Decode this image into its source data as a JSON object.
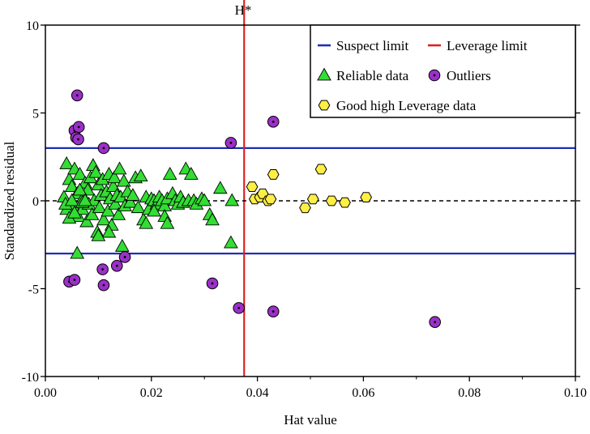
{
  "chart_data": {
    "type": "scatter",
    "xlabel": "Hat value",
    "ylabel": "Standardized residual",
    "xlim": [
      0.0,
      0.1
    ],
    "ylim": [
      -10,
      10
    ],
    "x_ticks": [
      "0.00",
      "0.02",
      "0.04",
      "0.06",
      "0.08",
      "0.10"
    ],
    "y_ticks": [
      "10",
      "5",
      "0",
      "-5",
      "-10"
    ],
    "grid": false,
    "legend_position": "top-right",
    "hstar_label": "H*",
    "reference_lines": [
      {
        "name": "Suspect limit",
        "orientation": "horizontal",
        "values": [
          3,
          -3
        ],
        "color": "#1f2fb5"
      },
      {
        "name": "Leverage limit",
        "orientation": "vertical",
        "values": [
          0.0375
        ],
        "color": "#e02020"
      },
      {
        "name": "",
        "orientation": "horizontal",
        "values": [
          0
        ],
        "color": "#000000",
        "dashed": true
      }
    ],
    "series": [
      {
        "name": "Reliable data",
        "marker": "triangle",
        "color": "#33dd33",
        "points": [
          [
            0.004,
            2.1
          ],
          [
            0.0045,
            1.2
          ],
          [
            0.005,
            0.8
          ],
          [
            0.0052,
            -0.3
          ],
          [
            0.0055,
            1.8
          ],
          [
            0.006,
            0.4
          ],
          [
            0.0062,
            -0.9
          ],
          [
            0.0065,
            1.5
          ],
          [
            0.007,
            -0.5
          ],
          [
            0.0072,
            0.2
          ],
          [
            0.0075,
            1.0
          ],
          [
            0.0078,
            -1.2
          ],
          [
            0.008,
            0.6
          ],
          [
            0.0082,
            -0.2
          ],
          [
            0.0085,
            1.3
          ],
          [
            0.0088,
            -0.8
          ],
          [
            0.009,
            2.0
          ],
          [
            0.0092,
            0.0
          ],
          [
            0.0095,
            1.6
          ],
          [
            0.0098,
            -1.8
          ],
          [
            0.01,
            0.9
          ],
          [
            0.0102,
            -0.4
          ],
          [
            0.0105,
            0.3
          ],
          [
            0.0108,
            1.2
          ],
          [
            0.011,
            -1.1
          ],
          [
            0.0115,
            0.5
          ],
          [
            0.0118,
            -0.6
          ],
          [
            0.012,
            1.5
          ],
          [
            0.0122,
            0.1
          ],
          [
            0.0125,
            -1.4
          ],
          [
            0.0128,
            0.8
          ],
          [
            0.013,
            1.3
          ],
          [
            0.0132,
            -0.2
          ],
          [
            0.0135,
            0.3
          ],
          [
            0.0138,
            -0.8
          ],
          [
            0.014,
            1.8
          ],
          [
            0.0142,
            0.2
          ],
          [
            0.0145,
            -2.6
          ],
          [
            0.0148,
            1.1
          ],
          [
            0.015,
            -0.3
          ],
          [
            0.0155,
            0.5
          ],
          [
            0.016,
            -0.1
          ],
          [
            0.0165,
            0.3
          ],
          [
            0.017,
            1.3
          ],
          [
            0.0175,
            -0.4
          ],
          [
            0.018,
            1.4
          ],
          [
            0.0185,
            -1.1
          ],
          [
            0.019,
            0.2
          ],
          [
            0.0195,
            -0.5
          ],
          [
            0.02,
            0.1
          ],
          [
            0.0205,
            0.0
          ],
          [
            0.021,
            -0.2
          ],
          [
            0.0215,
            0.2
          ],
          [
            0.022,
            0.0
          ],
          [
            0.0225,
            -0.3
          ],
          [
            0.023,
            0.1
          ],
          [
            0.0235,
            1.5
          ],
          [
            0.024,
            0.4
          ],
          [
            0.0245,
            0.0
          ],
          [
            0.025,
            -0.2
          ],
          [
            0.0255,
            0.2
          ],
          [
            0.026,
            -0.1
          ],
          [
            0.0265,
            1.8
          ],
          [
            0.027,
            0.0
          ],
          [
            0.0275,
            1.5
          ],
          [
            0.028,
            0.0
          ],
          [
            0.0285,
            -0.2
          ],
          [
            0.0295,
            0.1
          ],
          [
            0.03,
            0.0
          ],
          [
            0.031,
            -0.8
          ],
          [
            0.0315,
            -1.1
          ],
          [
            0.033,
            0.7
          ],
          [
            0.035,
            -2.4
          ],
          [
            0.0352,
            0.0
          ],
          [
            0.0225,
            -0.9
          ],
          [
            0.023,
            -1.3
          ],
          [
            0.0205,
            -0.6
          ],
          [
            0.019,
            -1.3
          ],
          [
            0.012,
            -1.8
          ],
          [
            0.01,
            -2.0
          ],
          [
            0.006,
            -3.0
          ],
          [
            0.004,
            -0.5
          ],
          [
            0.0035,
            0.2
          ],
          [
            0.0038,
            -0.2
          ],
          [
            0.0045,
            -1.0
          ],
          [
            0.005,
            0.0
          ],
          [
            0.0055,
            -0.7
          ],
          [
            0.0065,
            0.6
          ],
          [
            0.007,
            -0.1
          ],
          [
            0.0075,
            0.0
          ]
        ]
      },
      {
        "name": "Outliers",
        "marker": "circle",
        "color": "#9b30c8",
        "points": [
          [
            0.006,
            6.0
          ],
          [
            0.0055,
            4.0
          ],
          [
            0.0063,
            4.2
          ],
          [
            0.0058,
            3.6
          ],
          [
            0.0062,
            3.5
          ],
          [
            0.011,
            3.0
          ],
          [
            0.035,
            3.3
          ],
          [
            0.043,
            4.5
          ],
          [
            0.0045,
            -4.6
          ],
          [
            0.0055,
            -4.5
          ],
          [
            0.0108,
            -3.9
          ],
          [
            0.011,
            -4.8
          ],
          [
            0.0135,
            -3.7
          ],
          [
            0.015,
            -3.2
          ],
          [
            0.0315,
            -4.7
          ],
          [
            0.0365,
            -6.1
          ],
          [
            0.043,
            -6.3
          ],
          [
            0.0735,
            -6.9
          ]
        ]
      },
      {
        "name": "Good high Leverage data",
        "marker": "hexagon",
        "color": "#ffee44",
        "points": [
          [
            0.039,
            0.8
          ],
          [
            0.0395,
            0.1
          ],
          [
            0.0405,
            0.2
          ],
          [
            0.041,
            0.4
          ],
          [
            0.042,
            0.0
          ],
          [
            0.0425,
            0.1
          ],
          [
            0.043,
            1.5
          ],
          [
            0.049,
            -0.4
          ],
          [
            0.0505,
            0.1
          ],
          [
            0.052,
            1.8
          ],
          [
            0.054,
            0.0
          ],
          [
            0.0565,
            -0.1
          ],
          [
            0.0605,
            0.2
          ]
        ]
      }
    ],
    "legend": [
      {
        "label": "Suspect limit",
        "symbol": "line",
        "color": "#1f2fb5"
      },
      {
        "label": "Leverage limit",
        "symbol": "line",
        "color": "#e02020"
      },
      {
        "label": "Reliable data",
        "symbol": "triangle",
        "color": "#33dd33"
      },
      {
        "label": "Outliers",
        "symbol": "circle",
        "color": "#9b30c8"
      },
      {
        "label": "Good high Leverage data",
        "symbol": "hexagon",
        "color": "#ffee44"
      }
    ]
  }
}
